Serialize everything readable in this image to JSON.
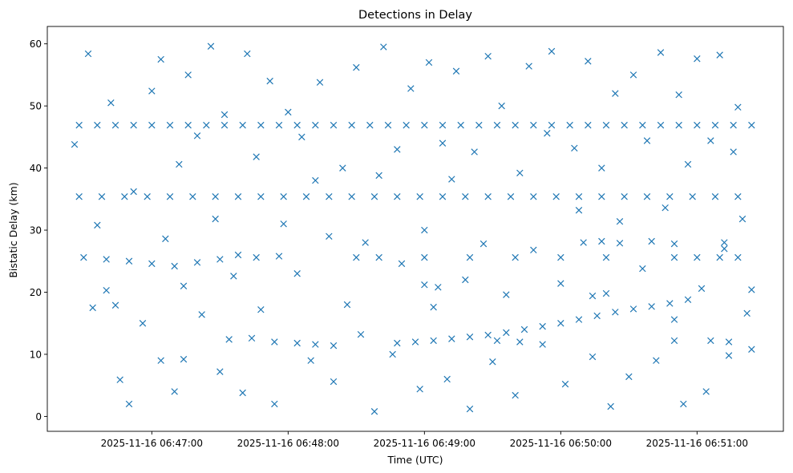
{
  "chart_data": {
    "type": "scatter",
    "title": "Detections in Delay",
    "xlabel": "Time (UTC)",
    "ylabel": "Bistatic Delay (km)",
    "marker": "x",
    "marker_color": "#1f77b4",
    "grid": false,
    "legend": "none",
    "x_unit": "datetime UTC",
    "xlim": [
      "2025-11-16 06:46:14",
      "2025-11-16 06:51:38"
    ],
    "ylim": [
      -2.4,
      62.8
    ],
    "x_ticks": [
      {
        "value": "2025-11-16 06:47:00",
        "label": "2025-11-16 06:47:00"
      },
      {
        "value": "2025-11-16 06:48:00",
        "label": "2025-11-16 06:48:00"
      },
      {
        "value": "2025-11-16 06:49:00",
        "label": "2025-11-16 06:49:00"
      },
      {
        "value": "2025-11-16 06:50:00",
        "label": "2025-11-16 06:50:00"
      },
      {
        "value": "2025-11-16 06:51:00",
        "label": "2025-11-16 06:51:00"
      }
    ],
    "y_ticks": [
      {
        "value": 0,
        "label": "0"
      },
      {
        "value": 10,
        "label": "10"
      },
      {
        "value": 20,
        "label": "20"
      },
      {
        "value": 30,
        "label": "30"
      },
      {
        "value": 40,
        "label": "40"
      },
      {
        "value": 50,
        "label": "50"
      },
      {
        "value": 60,
        "label": "60"
      }
    ],
    "series": [
      {
        "points": [
          [
            "2025-11-16 06:46:28",
            46.9
          ],
          [
            "2025-11-16 06:46:36",
            46.9
          ],
          [
            "2025-11-16 06:46:44",
            46.9
          ],
          [
            "2025-11-16 06:46:52",
            46.9
          ],
          [
            "2025-11-16 06:47:00",
            46.9
          ],
          [
            "2025-11-16 06:47:08",
            46.9
          ],
          [
            "2025-11-16 06:47:16",
            46.9
          ],
          [
            "2025-11-16 06:47:24",
            46.9
          ],
          [
            "2025-11-16 06:47:32",
            46.9
          ],
          [
            "2025-11-16 06:47:40",
            46.9
          ],
          [
            "2025-11-16 06:47:48",
            46.9
          ],
          [
            "2025-11-16 06:47:56",
            46.9
          ],
          [
            "2025-11-16 06:48:04",
            46.9
          ],
          [
            "2025-11-16 06:48:12",
            46.9
          ],
          [
            "2025-11-16 06:48:20",
            46.9
          ],
          [
            "2025-11-16 06:48:28",
            46.9
          ],
          [
            "2025-11-16 06:48:36",
            46.9
          ],
          [
            "2025-11-16 06:48:44",
            46.9
          ],
          [
            "2025-11-16 06:48:52",
            46.9
          ],
          [
            "2025-11-16 06:49:00",
            46.9
          ],
          [
            "2025-11-16 06:49:08",
            46.9
          ],
          [
            "2025-11-16 06:49:16",
            46.9
          ],
          [
            "2025-11-16 06:49:24",
            46.9
          ],
          [
            "2025-11-16 06:49:32",
            46.9
          ],
          [
            "2025-11-16 06:49:40",
            46.9
          ],
          [
            "2025-11-16 06:49:48",
            46.9
          ],
          [
            "2025-11-16 06:49:56",
            46.9
          ],
          [
            "2025-11-16 06:50:04",
            46.9
          ],
          [
            "2025-11-16 06:50:12",
            46.9
          ],
          [
            "2025-11-16 06:50:20",
            46.9
          ],
          [
            "2025-11-16 06:50:28",
            46.9
          ],
          [
            "2025-11-16 06:50:36",
            46.9
          ],
          [
            "2025-11-16 06:50:44",
            46.9
          ],
          [
            "2025-11-16 06:50:52",
            46.9
          ],
          [
            "2025-11-16 06:51:00",
            46.9
          ],
          [
            "2025-11-16 06:51:08",
            46.9
          ],
          [
            "2025-11-16 06:51:16",
            46.9
          ],
          [
            "2025-11-16 06:51:24",
            46.9
          ],
          [
            "2025-11-16 06:46:28",
            35.4
          ],
          [
            "2025-11-16 06:46:38",
            35.4
          ],
          [
            "2025-11-16 06:46:48",
            35.4
          ],
          [
            "2025-11-16 06:46:58",
            35.4
          ],
          [
            "2025-11-16 06:47:08",
            35.4
          ],
          [
            "2025-11-16 06:47:18",
            35.4
          ],
          [
            "2025-11-16 06:47:28",
            35.4
          ],
          [
            "2025-11-16 06:47:38",
            35.4
          ],
          [
            "2025-11-16 06:47:48",
            35.4
          ],
          [
            "2025-11-16 06:47:58",
            35.4
          ],
          [
            "2025-11-16 06:48:08",
            35.4
          ],
          [
            "2025-11-16 06:48:18",
            35.4
          ],
          [
            "2025-11-16 06:48:28",
            35.4
          ],
          [
            "2025-11-16 06:48:38",
            35.4
          ],
          [
            "2025-11-16 06:48:48",
            35.4
          ],
          [
            "2025-11-16 06:48:58",
            35.4
          ],
          [
            "2025-11-16 06:49:08",
            35.4
          ],
          [
            "2025-11-16 06:49:18",
            35.4
          ],
          [
            "2025-11-16 06:49:28",
            35.4
          ],
          [
            "2025-11-16 06:49:38",
            35.4
          ],
          [
            "2025-11-16 06:49:48",
            35.4
          ],
          [
            "2025-11-16 06:49:58",
            35.4
          ],
          [
            "2025-11-16 06:50:08",
            35.4
          ],
          [
            "2025-11-16 06:50:18",
            35.4
          ],
          [
            "2025-11-16 06:50:28",
            35.4
          ],
          [
            "2025-11-16 06:50:38",
            35.4
          ],
          [
            "2025-11-16 06:50:48",
            35.4
          ],
          [
            "2025-11-16 06:50:58",
            35.4
          ],
          [
            "2025-11-16 06:51:08",
            35.4
          ],
          [
            "2025-11-16 06:51:18",
            35.4
          ],
          [
            "2025-11-16 06:46:30",
            25.6
          ],
          [
            "2025-11-16 06:46:40",
            25.3
          ],
          [
            "2025-11-16 06:46:50",
            25.0
          ],
          [
            "2025-11-16 06:47:00",
            24.6
          ],
          [
            "2025-11-16 06:47:10",
            24.2
          ],
          [
            "2025-11-16 06:47:20",
            24.8
          ],
          [
            "2025-11-16 06:47:30",
            25.3
          ],
          [
            "2025-11-16 06:47:38",
            26.0
          ],
          [
            "2025-11-16 06:47:46",
            25.6
          ],
          [
            "2025-11-16 06:47:56",
            25.8
          ],
          [
            "2025-11-16 06:48:30",
            25.6
          ],
          [
            "2025-11-16 06:48:40",
            25.6
          ],
          [
            "2025-11-16 06:49:00",
            25.6
          ],
          [
            "2025-11-16 06:49:20",
            25.6
          ],
          [
            "2025-11-16 06:49:40",
            25.6
          ],
          [
            "2025-11-16 06:50:00",
            25.6
          ],
          [
            "2025-11-16 06:50:20",
            25.6
          ],
          [
            "2025-11-16 06:50:50",
            25.6
          ],
          [
            "2025-11-16 06:51:00",
            25.6
          ],
          [
            "2025-11-16 06:51:10",
            25.6
          ],
          [
            "2025-11-16 06:51:18",
            25.6
          ],
          [
            "2025-11-16 06:50:10",
            28.0
          ],
          [
            "2025-11-16 06:50:18",
            28.2
          ],
          [
            "2025-11-16 06:50:26",
            27.9
          ],
          [
            "2025-11-16 06:50:40",
            28.2
          ],
          [
            "2025-11-16 06:50:50",
            27.8
          ],
          [
            "2025-11-16 06:51:12",
            28.0
          ],
          [
            "2025-11-16 06:47:04",
            9.0
          ],
          [
            "2025-11-16 06:47:14",
            9.2
          ],
          [
            "2025-11-16 06:47:34",
            12.4
          ],
          [
            "2025-11-16 06:47:44",
            12.6
          ],
          [
            "2025-11-16 06:47:54",
            12.0
          ],
          [
            "2025-11-16 06:48:04",
            11.8
          ],
          [
            "2025-11-16 06:48:12",
            11.6
          ],
          [
            "2025-11-16 06:48:20",
            11.4
          ],
          [
            "2025-11-16 06:48:48",
            11.8
          ],
          [
            "2025-11-16 06:48:56",
            12.0
          ],
          [
            "2025-11-16 06:49:04",
            12.2
          ],
          [
            "2025-11-16 06:49:12",
            12.5
          ],
          [
            "2025-11-16 06:49:20",
            12.8
          ],
          [
            "2025-11-16 06:49:28",
            13.1
          ],
          [
            "2025-11-16 06:49:36",
            13.5
          ],
          [
            "2025-11-16 06:49:44",
            14.0
          ],
          [
            "2025-11-16 06:49:52",
            14.5
          ],
          [
            "2025-11-16 06:50:00",
            15.0
          ],
          [
            "2025-11-16 06:50:08",
            15.6
          ],
          [
            "2025-11-16 06:50:16",
            16.2
          ],
          [
            "2025-11-16 06:50:24",
            16.8
          ],
          [
            "2025-11-16 06:50:32",
            17.3
          ],
          [
            "2025-11-16 06:50:40",
            17.7
          ],
          [
            "2025-11-16 06:50:48",
            18.2
          ],
          [
            "2025-11-16 06:50:56",
            18.8
          ],
          [
            "2025-11-16 06:49:32",
            12.2
          ],
          [
            "2025-11-16 06:49:42",
            12.0
          ],
          [
            "2025-11-16 06:50:50",
            12.2
          ],
          [
            "2025-11-16 06:51:06",
            12.2
          ],
          [
            "2025-11-16 06:51:14",
            12.0
          ],
          [
            "2025-11-16 06:50:14",
            19.4
          ],
          [
            "2025-11-16 06:50:20",
            19.8
          ],
          [
            "2025-11-16 06:49:06",
            20.8
          ],
          [
            "2025-11-16 06:49:00",
            21.2
          ],
          [
            "2025-11-16 06:46:44",
            17.9
          ],
          [
            "2025-11-16 06:46:34",
            17.5
          ],
          [
            "2025-11-16 06:46:26",
            43.8
          ],
          [
            "2025-11-16 06:46:32",
            58.4
          ],
          [
            "2025-11-16 06:46:36",
            30.8
          ],
          [
            "2025-11-16 06:46:40",
            20.3
          ],
          [
            "2025-11-16 06:46:42",
            50.5
          ],
          [
            "2025-11-16 06:46:46",
            5.9
          ],
          [
            "2025-11-16 06:46:50",
            2.0
          ],
          [
            "2025-11-16 06:46:52",
            36.2
          ],
          [
            "2025-11-16 06:46:56",
            15.0
          ],
          [
            "2025-11-16 06:47:00",
            52.4
          ],
          [
            "2025-11-16 06:47:04",
            57.5
          ],
          [
            "2025-11-16 06:47:06",
            28.6
          ],
          [
            "2025-11-16 06:47:10",
            4.0
          ],
          [
            "2025-11-16 06:47:12",
            40.6
          ],
          [
            "2025-11-16 06:47:14",
            21.0
          ],
          [
            "2025-11-16 06:47:16",
            55.0
          ],
          [
            "2025-11-16 06:47:20",
            45.2
          ],
          [
            "2025-11-16 06:47:22",
            16.4
          ],
          [
            "2025-11-16 06:47:26",
            59.6
          ],
          [
            "2025-11-16 06:47:28",
            31.8
          ],
          [
            "2025-11-16 06:47:30",
            7.2
          ],
          [
            "2025-11-16 06:47:32",
            48.6
          ],
          [
            "2025-11-16 06:47:36",
            22.6
          ],
          [
            "2025-11-16 06:47:40",
            3.8
          ],
          [
            "2025-11-16 06:47:42",
            58.4
          ],
          [
            "2025-11-16 06:47:46",
            41.8
          ],
          [
            "2025-11-16 06:47:48",
            17.2
          ],
          [
            "2025-11-16 06:47:52",
            54.0
          ],
          [
            "2025-11-16 06:47:54",
            2.0
          ],
          [
            "2025-11-16 06:47:58",
            31.0
          ],
          [
            "2025-11-16 06:48:00",
            49.0
          ],
          [
            "2025-11-16 06:48:04",
            23.0
          ],
          [
            "2025-11-16 06:48:06",
            45.0
          ],
          [
            "2025-11-16 06:48:10",
            9.0
          ],
          [
            "2025-11-16 06:48:12",
            38.0
          ],
          [
            "2025-11-16 06:48:14",
            53.8
          ],
          [
            "2025-11-16 06:48:18",
            29.0
          ],
          [
            "2025-11-16 06:48:20",
            5.6
          ],
          [
            "2025-11-16 06:48:24",
            40.0
          ],
          [
            "2025-11-16 06:48:26",
            18.0
          ],
          [
            "2025-11-16 06:48:30",
            56.2
          ],
          [
            "2025-11-16 06:48:32",
            13.2
          ],
          [
            "2025-11-16 06:48:34",
            28.0
          ],
          [
            "2025-11-16 06:48:38",
            0.8
          ],
          [
            "2025-11-16 06:48:40",
            38.8
          ],
          [
            "2025-11-16 06:48:42",
            59.5
          ],
          [
            "2025-11-16 06:48:46",
            10.0
          ],
          [
            "2025-11-16 06:48:48",
            43.0
          ],
          [
            "2025-11-16 06:48:50",
            24.6
          ],
          [
            "2025-11-16 06:48:54",
            52.8
          ],
          [
            "2025-11-16 06:48:58",
            4.4
          ],
          [
            "2025-11-16 06:49:00",
            30.0
          ],
          [
            "2025-11-16 06:49:02",
            57.0
          ],
          [
            "2025-11-16 06:49:04",
            17.6
          ],
          [
            "2025-11-16 06:49:08",
            44.0
          ],
          [
            "2025-11-16 06:49:10",
            6.0
          ],
          [
            "2025-11-16 06:49:12",
            38.2
          ],
          [
            "2025-11-16 06:49:14",
            55.6
          ],
          [
            "2025-11-16 06:49:18",
            22.0
          ],
          [
            "2025-11-16 06:49:20",
            1.2
          ],
          [
            "2025-11-16 06:49:22",
            42.6
          ],
          [
            "2025-11-16 06:49:26",
            27.8
          ],
          [
            "2025-11-16 06:49:28",
            58.0
          ],
          [
            "2025-11-16 06:49:30",
            8.8
          ],
          [
            "2025-11-16 06:49:34",
            50.0
          ],
          [
            "2025-11-16 06:49:36",
            19.6
          ],
          [
            "2025-11-16 06:49:40",
            3.4
          ],
          [
            "2025-11-16 06:49:42",
            39.2
          ],
          [
            "2025-11-16 06:49:46",
            56.4
          ],
          [
            "2025-11-16 06:49:48",
            26.8
          ],
          [
            "2025-11-16 06:49:52",
            11.6
          ],
          [
            "2025-11-16 06:49:54",
            45.6
          ],
          [
            "2025-11-16 06:49:56",
            58.8
          ],
          [
            "2025-11-16 06:50:00",
            21.4
          ],
          [
            "2025-11-16 06:50:02",
            5.2
          ],
          [
            "2025-11-16 06:50:06",
            43.2
          ],
          [
            "2025-11-16 06:50:08",
            33.2
          ],
          [
            "2025-11-16 06:50:12",
            57.2
          ],
          [
            "2025-11-16 06:50:14",
            9.6
          ],
          [
            "2025-11-16 06:50:18",
            40.0
          ],
          [
            "2025-11-16 06:50:22",
            1.6
          ],
          [
            "2025-11-16 06:50:24",
            52.0
          ],
          [
            "2025-11-16 06:50:26",
            31.4
          ],
          [
            "2025-11-16 06:50:30",
            6.4
          ],
          [
            "2025-11-16 06:50:32",
            55.0
          ],
          [
            "2025-11-16 06:50:36",
            23.8
          ],
          [
            "2025-11-16 06:50:38",
            44.4
          ],
          [
            "2025-11-16 06:50:42",
            9.0
          ],
          [
            "2025-11-16 06:50:44",
            58.6
          ],
          [
            "2025-11-16 06:50:46",
            33.6
          ],
          [
            "2025-11-16 06:50:50",
            15.6
          ],
          [
            "2025-11-16 06:50:52",
            51.8
          ],
          [
            "2025-11-16 06:50:54",
            2.0
          ],
          [
            "2025-11-16 06:50:56",
            40.6
          ],
          [
            "2025-11-16 06:51:00",
            57.6
          ],
          [
            "2025-11-16 06:51:02",
            20.6
          ],
          [
            "2025-11-16 06:51:04",
            4.0
          ],
          [
            "2025-11-16 06:51:06",
            44.4
          ],
          [
            "2025-11-16 06:51:10",
            58.2
          ],
          [
            "2025-11-16 06:51:12",
            27.0
          ],
          [
            "2025-11-16 06:51:14",
            9.8
          ],
          [
            "2025-11-16 06:51:16",
            42.6
          ],
          [
            "2025-11-16 06:51:18",
            49.8
          ],
          [
            "2025-11-16 06:51:20",
            31.8
          ],
          [
            "2025-11-16 06:51:22",
            16.6
          ],
          [
            "2025-11-16 06:51:24",
            20.4
          ],
          [
            "2025-11-16 06:51:24",
            10.8
          ]
        ]
      }
    ]
  }
}
